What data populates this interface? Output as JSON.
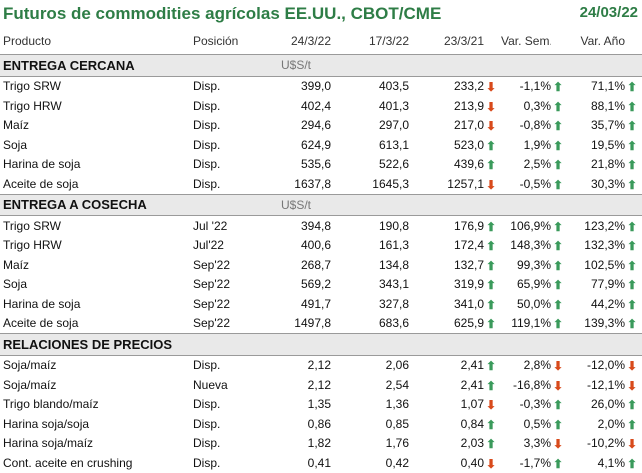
{
  "header": {
    "title": "Futuros de commodities agrícolas EE.UU., CBOT/CME",
    "date": "24/03/22"
  },
  "columns": {
    "product": "Producto",
    "position": "Posición",
    "d1": "24/3/22",
    "d2": "17/3/22",
    "d3": "23/3/21",
    "week": "Var. Sem.",
    "year": "Var. Año"
  },
  "sections": [
    {
      "title": "ENTREGA CERCANA",
      "unit": "U$S/t",
      "rows": [
        {
          "name": "Trigo SRW",
          "pos": "Disp.",
          "d1": "399,0",
          "d2": "403,5",
          "d3": "233,2",
          "d3_dir": "down",
          "week": "-1,1%",
          "week_dir": "up",
          "year": "71,1%"
        },
        {
          "name": "Trigo HRW",
          "pos": "Disp.",
          "d1": "402,4",
          "d2": "401,3",
          "d3": "213,9",
          "d3_dir": "down",
          "week": "0,3%",
          "week_dir": "up",
          "year": "88,1%"
        },
        {
          "name": "Maíz",
          "pos": "Disp.",
          "d1": "294,6",
          "d2": "297,0",
          "d3": "217,0",
          "d3_dir": "down",
          "week": "-0,8%",
          "week_dir": "up",
          "year": "35,7%"
        },
        {
          "name": "Soja",
          "pos": "Disp.",
          "d1": "624,9",
          "d2": "613,1",
          "d3": "523,0",
          "d3_dir": "up",
          "week": "1,9%",
          "week_dir": "up",
          "year": "19,5%"
        },
        {
          "name": "Harina de soja",
          "pos": "Disp.",
          "d1": "535,6",
          "d2": "522,6",
          "d3": "439,6",
          "d3_dir": "up",
          "week": "2,5%",
          "week_dir": "up",
          "year": "21,8%"
        },
        {
          "name": "Aceite de soja",
          "pos": "Disp.",
          "d1": "1637,8",
          "d2": "1645,3",
          "d3": "1257,1",
          "d3_dir": "down",
          "week": "-0,5%",
          "week_dir": "up",
          "year": "30,3%"
        }
      ]
    },
    {
      "title": "ENTREGA A COSECHA",
      "unit": "U$S/t",
      "rows": [
        {
          "name": "Trigo SRW",
          "pos": "Jul '22",
          "d1": "394,8",
          "d2": "190,8",
          "d3": "176,9",
          "d3_dir": "up",
          "week": "106,9%",
          "week_dir": "up",
          "year": "123,2%"
        },
        {
          "name": "Trigo HRW",
          "pos": "Jul'22",
          "d1": "400,6",
          "d2": "161,3",
          "d3": "172,4",
          "d3_dir": "up",
          "week": "148,3%",
          "week_dir": "up",
          "year": "132,3%"
        },
        {
          "name": "Maíz",
          "pos": "Sep'22",
          "d1": "268,7",
          "d2": "134,8",
          "d3": "132,7",
          "d3_dir": "up",
          "week": "99,3%",
          "week_dir": "up",
          "year": "102,5%"
        },
        {
          "name": "Soja",
          "pos": "Sep'22",
          "d1": "569,2",
          "d2": "343,1",
          "d3": "319,9",
          "d3_dir": "up",
          "week": "65,9%",
          "week_dir": "up",
          "year": "77,9%"
        },
        {
          "name": "Harina de soja",
          "pos": "Sep'22",
          "d1": "491,7",
          "d2": "327,8",
          "d3": "341,0",
          "d3_dir": "up",
          "week": "50,0%",
          "week_dir": "up",
          "year": "44,2%"
        },
        {
          "name": "Aceite de soja",
          "pos": "Sep'22",
          "d1": "1497,8",
          "d2": "683,6",
          "d3": "625,9",
          "d3_dir": "up",
          "week": "119,1%",
          "week_dir": "up",
          "year": "139,3%"
        }
      ]
    },
    {
      "title": "RELACIONES DE PRECIOS",
      "unit": "",
      "rows": [
        {
          "name": "Soja/maíz",
          "pos": "Disp.",
          "d1": "2,12",
          "d2": "2,06",
          "d3": "2,41",
          "d3_dir": "up",
          "week": "2,8%",
          "week_dir": "down",
          "year": "-12,0%"
        },
        {
          "name": "Soja/maíz",
          "pos": "Nueva",
          "d1": "2,12",
          "d2": "2,54",
          "d3": "2,41",
          "d3_dir": "up",
          "week": "-16,8%",
          "week_dir": "down",
          "year": "-12,1%"
        },
        {
          "name": "Trigo blando/maíz",
          "pos": "Disp.",
          "d1": "1,35",
          "d2": "1,36",
          "d3": "1,07",
          "d3_dir": "down",
          "week": "-0,3%",
          "week_dir": "up",
          "year": "26,0%"
        },
        {
          "name": "Harina soja/soja",
          "pos": "Disp.",
          "d1": "0,86",
          "d2": "0,85",
          "d3": "0,84",
          "d3_dir": "up",
          "week": "0,5%",
          "week_dir": "up",
          "year": "2,0%"
        },
        {
          "name": "Harina soja/maíz",
          "pos": "Disp.",
          "d1": "1,82",
          "d2": "1,76",
          "d3": "2,03",
          "d3_dir": "up",
          "week": "3,3%",
          "week_dir": "down",
          "year": "-10,2%"
        },
        {
          "name": "Cont. aceite en crushing",
          "pos": "Disp.",
          "d1": "0,41",
          "d2": "0,42",
          "d3": "0,40",
          "d3_dir": "down",
          "week": "-1,7%",
          "week_dir": "up",
          "year": "4,1%"
        }
      ]
    }
  ],
  "icons": {
    "up": "up-arrow-icon",
    "down": "down-arrow-icon"
  },
  "colors": {
    "title": "#2e7d46",
    "up": "#3a9a5b",
    "down": "#d84a1b",
    "section_bg": "#e9e9e9"
  }
}
